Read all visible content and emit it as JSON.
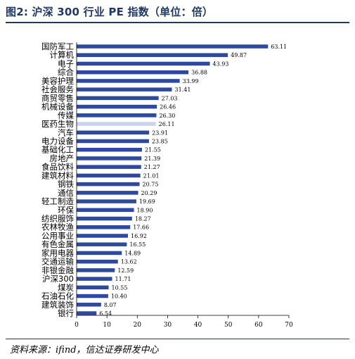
{
  "title": "图2: 沪深 300 行业 PE 指数（单位：倍）",
  "source": "资料来源：ifind，信达证券研发中心",
  "colors": {
    "bar": "#2e4a9e",
    "highlight": "#c8d4ea",
    "title": "#1f3864"
  },
  "chart_data": {
    "type": "bar",
    "orientation": "horizontal",
    "categories": [
      "国防军工",
      "计算机",
      "电子",
      "综合",
      "美容护理",
      "社会服务",
      "商贸零售",
      "机械设备",
      "传媒",
      "医药生物",
      "汽车",
      "电力设备",
      "基础化工",
      "房地产",
      "食品饮料",
      "建筑材料",
      "钢铁",
      "通信",
      "轻工制造",
      "环保",
      "纺织服饰",
      "农林牧渔",
      "公用事业",
      "有色金属",
      "家用电器",
      "交通运输",
      "非银金融",
      "沪深300",
      "煤炭",
      "石油石化",
      "建筑装饰",
      "银行"
    ],
    "values": [
      63.11,
      49.87,
      43.93,
      36.88,
      33.99,
      31.41,
      27.03,
      26.46,
      26.3,
      26.11,
      23.91,
      23.85,
      21.55,
      21.39,
      21.27,
      21.01,
      20.75,
      20.29,
      19.69,
      18.9,
      18.27,
      17.66,
      16.92,
      16.55,
      14.89,
      13.62,
      12.59,
      11.71,
      10.55,
      10.4,
      8.07,
      6.54
    ],
    "value_labels": [
      "63.11",
      "49.87",
      "43.93",
      "36.88",
      "33.99",
      "31.41",
      "27.03",
      "26.46",
      "26.30",
      "26.11",
      "23.91",
      "23.85",
      "21.55",
      "21.39",
      "21.27",
      "21.01",
      "20.75",
      "20.29",
      "19.69",
      "18.90",
      "18.27",
      "17.66",
      "16.92",
      "16.55",
      "14.89",
      "13.62",
      "12.59",
      "11.71",
      "10.55",
      "10.40",
      "8.07",
      "6.54"
    ],
    "highlight": "医药生物",
    "xlim": [
      0,
      70
    ],
    "xticks": [
      0,
      10,
      20,
      30,
      40,
      50,
      60,
      70
    ],
    "xtick_labels": [
      "0",
      "10",
      "20",
      "30",
      "40",
      "50",
      "60",
      "70"
    ],
    "grid": false
  }
}
